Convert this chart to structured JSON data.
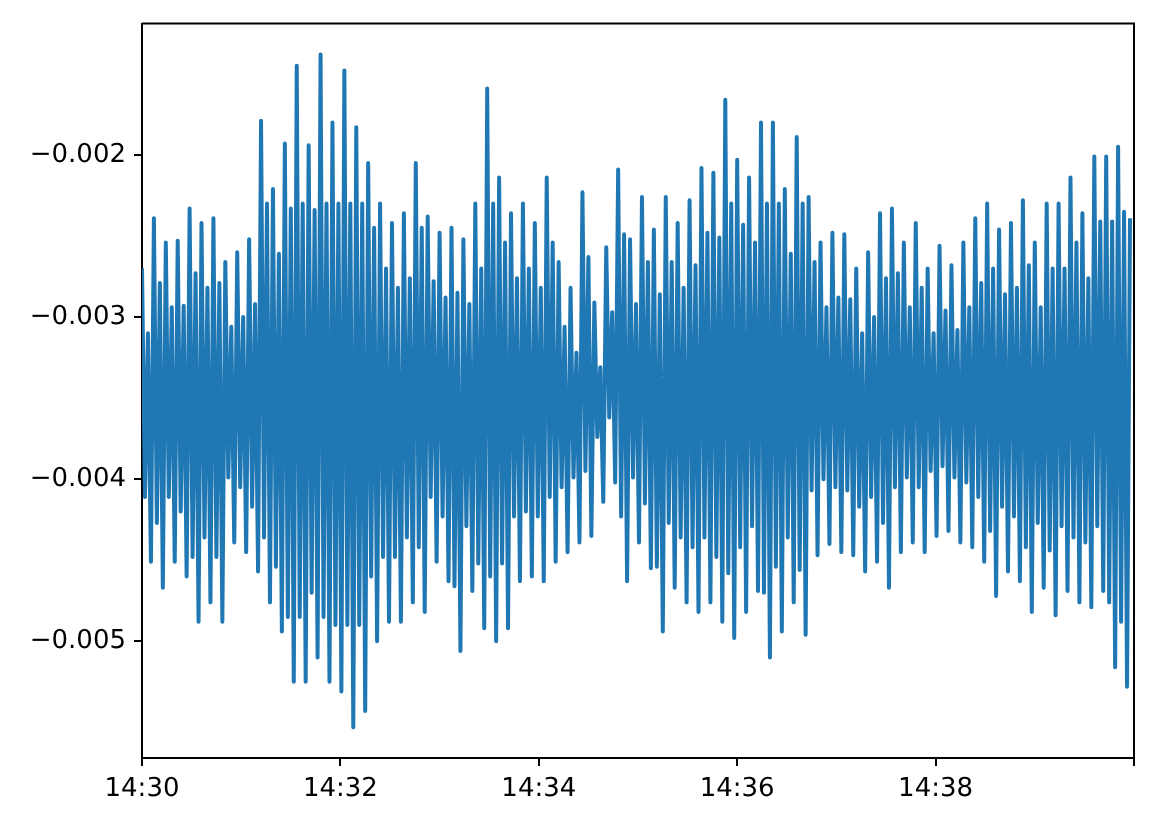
{
  "chart_data": {
    "type": "line",
    "color": "#1f77b4",
    "marker": "none",
    "line_style": "solid",
    "grid": false,
    "xlim": [
      14.5,
      14.66667
    ],
    "ylim": [
      -0.00572,
      -0.00119
    ],
    "xticks": [
      {
        "value": 14.5,
        "label": "14:30"
      },
      {
        "value": 14.53333,
        "label": "14:32"
      },
      {
        "value": 14.56667,
        "label": "14:34"
      },
      {
        "value": 14.6,
        "label": "14:36"
      },
      {
        "value": 14.63333,
        "label": "14:38"
      },
      {
        "value": 14.66667,
        "label": null
      }
    ],
    "yticks": [
      {
        "value": -0.005,
        "label": "−0.005"
      },
      {
        "value": -0.004,
        "label": "−0.004"
      },
      {
        "value": -0.003,
        "label": "−0.003"
      },
      {
        "value": -0.002,
        "label": "−0.002"
      }
    ],
    "x": [
      14.5,
      14.5005,
      14.501,
      14.5015,
      14.502,
      14.5025,
      14.503,
      14.5035,
      14.504,
      14.5045,
      14.505,
      14.5055,
      14.506,
      14.5065,
      14.507,
      14.5075,
      14.508,
      14.5085,
      14.509,
      14.5095,
      14.51,
      14.5105,
      14.511,
      14.5115,
      14.512,
      14.5125,
      14.513,
      14.5135,
      14.514,
      14.5145,
      14.515,
      14.5155,
      14.516,
      14.5165,
      14.517,
      14.5175,
      14.518,
      14.5185,
      14.519,
      14.5195,
      14.52,
      14.5205,
      14.521,
      14.5215,
      14.522,
      14.5225,
      14.523,
      14.5235,
      14.524,
      14.5245,
      14.525,
      14.5255,
      14.526,
      14.5265,
      14.527,
      14.5275,
      14.528,
      14.5285,
      14.529,
      14.5295,
      14.53,
      14.5305,
      14.531,
      14.5315,
      14.532,
      14.5325,
      14.533,
      14.5335,
      14.534,
      14.5345,
      14.535,
      14.5355,
      14.536,
      14.5365,
      14.537,
      14.5375,
      14.538,
      14.5385,
      14.539,
      14.5395,
      14.54,
      14.5405,
      14.541,
      14.5415,
      14.542,
      14.5425,
      14.543,
      14.5435,
      14.544,
      14.5445,
      14.545,
      14.5455,
      14.546,
      14.5465,
      14.547,
      14.5475,
      14.548,
      14.5485,
      14.549,
      14.5495,
      14.55,
      14.5505,
      14.551,
      14.5515,
      14.552,
      14.5525,
      14.553,
      14.5535,
      14.554,
      14.5545,
      14.555,
      14.5555,
      14.556,
      14.5565,
      14.557,
      14.5575,
      14.558,
      14.5585,
      14.559,
      14.5595,
      14.56,
      14.5605,
      14.561,
      14.5615,
      14.562,
      14.5625,
      14.563,
      14.5635,
      14.564,
      14.5645,
      14.565,
      14.5655,
      14.566,
      14.5665,
      14.567,
      14.5675,
      14.568,
      14.5685,
      14.569,
      14.5695,
      14.57,
      14.5705,
      14.571,
      14.5715,
      14.572,
      14.5725,
      14.573,
      14.5735,
      14.574,
      14.5745,
      14.575,
      14.5755,
      14.576,
      14.5765,
      14.577,
      14.5775,
      14.578,
      14.5785,
      14.579,
      14.5795,
      14.58,
      14.5805,
      14.581,
      14.5815,
      14.582,
      14.5825,
      14.583,
      14.5835,
      14.584,
      14.5845,
      14.585,
      14.5855,
      14.586,
      14.5865,
      14.587,
      14.5875,
      14.588,
      14.5885,
      14.589,
      14.5895,
      14.59,
      14.5905,
      14.591,
      14.5915,
      14.592,
      14.5925,
      14.593,
      14.5935,
      14.594,
      14.5945,
      14.595,
      14.5955,
      14.596,
      14.5965,
      14.597,
      14.5975,
      14.598,
      14.5985,
      14.599,
      14.5995,
      14.6,
      14.6005,
      14.601,
      14.6015,
      14.602,
      14.6025,
      14.603,
      14.6035,
      14.604,
      14.6045,
      14.605,
      14.6055,
      14.606,
      14.6065,
      14.607,
      14.6075,
      14.608,
      14.6085,
      14.609,
      14.6095,
      14.61,
      14.6105,
      14.611,
      14.6115,
      14.612,
      14.6125,
      14.613,
      14.6135,
      14.614,
      14.6145,
      14.615,
      14.6155,
      14.616,
      14.6165,
      14.617,
      14.6175,
      14.618,
      14.6185,
      14.619,
      14.6195,
      14.62,
      14.6205,
      14.621,
      14.6215,
      14.622,
      14.6225,
      14.623,
      14.6235,
      14.624,
      14.6245,
      14.625,
      14.6255,
      14.626,
      14.6265,
      14.627,
      14.6275,
      14.628,
      14.6285,
      14.629,
      14.6295,
      14.63,
      14.6305,
      14.631,
      14.6315,
      14.632,
      14.6325,
      14.633,
      14.6335,
      14.634,
      14.6345,
      14.635,
      14.6355,
      14.636,
      14.6365,
      14.637,
      14.6375,
      14.638,
      14.6385,
      14.639,
      14.6395,
      14.64,
      14.6405,
      14.641,
      14.6415,
      14.642,
      14.6425,
      14.643,
      14.6435,
      14.644,
      14.6445,
      14.645,
      14.6455,
      14.646,
      14.6465,
      14.647,
      14.6475,
      14.648,
      14.6485,
      14.649,
      14.6495,
      14.65,
      14.6505,
      14.651,
      14.6515,
      14.652,
      14.6525,
      14.653,
      14.6535,
      14.654,
      14.6545,
      14.655,
      14.6555,
      14.656,
      14.6565,
      14.657,
      14.6575,
      14.658,
      14.6585,
      14.659,
      14.6595,
      14.66,
      14.6605,
      14.661,
      14.6615,
      14.662,
      14.6625,
      14.663,
      14.6635,
      14.664,
      14.6645,
      14.665,
      14.6655,
      14.666
    ],
    "values": [
      -0.0027,
      -0.00411,
      -0.0031,
      -0.00451,
      -0.00239,
      -0.00427,
      -0.00279,
      -0.00467,
      -0.00254,
      -0.00411,
      -0.00294,
      -0.00451,
      -0.00253,
      -0.0042,
      -0.00293,
      -0.0046,
      -0.00233,
      -0.00448,
      -0.00273,
      -0.00488,
      -0.00242,
      -0.00436,
      -0.00282,
      -0.00476,
      -0.00239,
      -0.00448,
      -0.00279,
      -0.00488,
      -0.00266,
      -0.00399,
      -0.00306,
      -0.00439,
      -0.0026,
      -0.00405,
      -0.003,
      -0.00445,
      -0.00252,
      -0.00417,
      -0.00292,
      -0.00457,
      -0.00179,
      -0.00436,
      -0.0023,
      -0.00476,
      -0.00221,
      -0.00454,
      -0.00261,
      -0.00494,
      -0.00193,
      -0.00485,
      -0.00233,
      -0.00525,
      -0.00145,
      -0.00485,
      -0.0023,
      -0.00525,
      -0.00194,
      -0.0047,
      -0.00234,
      -0.0051,
      -0.00138,
      -0.00485,
      -0.0023,
      -0.00525,
      -0.0018,
      -0.0049,
      -0.0023,
      -0.00531,
      -0.00148,
      -0.0049,
      -0.0023,
      -0.00553,
      -0.00183,
      -0.0049,
      -0.0023,
      -0.00543,
      -0.00205,
      -0.0046,
      -0.00245,
      -0.005,
      -0.0023,
      -0.00448,
      -0.0027,
      -0.00488,
      -0.00242,
      -0.00448,
      -0.00282,
      -0.00488,
      -0.00236,
      -0.00436,
      -0.00276,
      -0.00476,
      -0.00205,
      -0.00442,
      -0.00245,
      -0.00482,
      -0.00238,
      -0.00411,
      -0.00278,
      -0.00451,
      -0.00248,
      -0.00423,
      -0.00288,
      -0.00463,
      -0.00245,
      -0.00466,
      -0.00285,
      -0.00506,
      -0.00252,
      -0.00429,
      -0.00292,
      -0.00469,
      -0.0023,
      -0.00452,
      -0.0027,
      -0.00492,
      -0.00159,
      -0.0046,
      -0.0023,
      -0.005,
      -0.00214,
      -0.00452,
      -0.00254,
      -0.00492,
      -0.00236,
      -0.00423,
      -0.00276,
      -0.00463,
      -0.0023,
      -0.0042,
      -0.0027,
      -0.0046,
      -0.00242,
      -0.00423,
      -0.00282,
      -0.00463,
      -0.00214,
      -0.00411,
      -0.00254,
      -0.00451,
      -0.00266,
      -0.00405,
      -0.00306,
      -0.00445,
      -0.00282,
      -0.00399,
      -0.00322,
      -0.00439,
      -0.00223,
      -0.00395,
      -0.00263,
      -0.00435,
      -0.00291,
      -0.00374,
      -0.00331,
      -0.00414,
      -0.00257,
      -0.00362,
      -0.00297,
      -0.00402,
      -0.00209,
      -0.00423,
      -0.00249,
      -0.00463,
      -0.00252,
      -0.00399,
      -0.00292,
      -0.00439,
      -0.00226,
      -0.00415,
      -0.00266,
      -0.00455,
      -0.00246,
      -0.00454,
      -0.00286,
      -0.00494,
      -0.00226,
      -0.00427,
      -0.00266,
      -0.00467,
      -0.00242,
      -0.00436,
      -0.00282,
      -0.00476,
      -0.00228,
      -0.00442,
      -0.00268,
      -0.00482,
      -0.00208,
      -0.00436,
      -0.00248,
      -0.00476,
      -0.00211,
      -0.00448,
      -0.00251,
      -0.00488,
      -0.00166,
      -0.00458,
      -0.0023,
      -0.00498,
      -0.00203,
      -0.00442,
      -0.00243,
      -0.00482,
      -0.00214,
      -0.00429,
      -0.00254,
      -0.00469,
      -0.0018,
      -0.0047,
      -0.0023,
      -0.0051,
      -0.0018,
      -0.00454,
      -0.0023,
      -0.00494,
      -0.00221,
      -0.00436,
      -0.00261,
      -0.00476,
      -0.00189,
      -0.00456,
      -0.0023,
      -0.00496,
      -0.00226,
      -0.00407,
      -0.00266,
      -0.00447,
      -0.00254,
      -0.004,
      -0.00294,
      -0.0044,
      -0.00248,
      -0.00405,
      -0.00288,
      -0.00445,
      -0.00249,
      -0.00407,
      -0.00289,
      -0.00447,
      -0.0027,
      -0.00417,
      -0.0031,
      -0.00457,
      -0.0026,
      -0.00411,
      -0.003,
      -0.00451,
      -0.00236,
      -0.00427,
      -0.00276,
      -0.00467,
      -0.00233,
      -0.00405,
      -0.00273,
      -0.00445,
      -0.00254,
      -0.00399,
      -0.00294,
      -0.00439,
      -0.00242,
      -0.00405,
      -0.00282,
      -0.00445,
      -0.0027,
      -0.00395,
      -0.0031,
      -0.00435,
      -0.00256,
      -0.00392,
      -0.00296,
      -0.00432,
      -0.00268,
      -0.00399,
      -0.00308,
      -0.00439,
      -0.00254,
      -0.00402,
      -0.00294,
      -0.00442,
      -0.00239,
      -0.00411,
      -0.00279,
      -0.00451,
      -0.0023,
      -0.00432,
      -0.0027,
      -0.00472,
      -0.00246,
      -0.00417,
      -0.00286,
      -0.00457,
      -0.00242,
      -0.00423,
      -0.00282,
      -0.00463,
      -0.00228,
      -0.00442,
      -0.00268,
      -0.00482,
      -0.00254,
      -0.00427,
      -0.00294,
      -0.00467,
      -0.0023,
      -0.00444,
      -0.0027,
      -0.00484,
      -0.0023,
      -0.00429,
      -0.0027,
      -0.00469,
      -0.00214,
      -0.00436,
      -0.00254,
      -0.00476,
      -0.00236,
      -0.00439,
      -0.00276,
      -0.00479,
      -0.00201,
      -0.00429,
      -0.00241,
      -0.00469,
      -0.00201,
      -0.00476,
      -0.00241,
      -0.00516,
      -0.00195,
      -0.00488,
      -0.00235,
      -0.00528,
      -0.00239
    ]
  }
}
